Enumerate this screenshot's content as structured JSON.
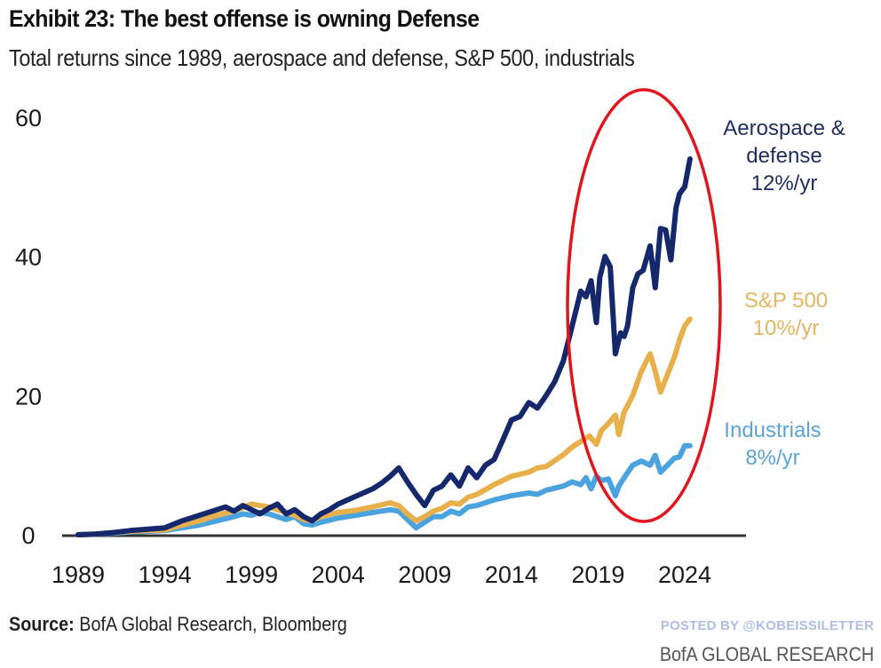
{
  "header": {
    "title": "Exhibit 23: The best offense is owning Defense",
    "subtitle": "Total returns since 1989, aerospace and defense, S&P 500, industrials"
  },
  "footer": {
    "source_label": "Source:",
    "source_text": "BofA Global Research, Bloomberg",
    "posted_by": "POSTED BY @KOBEISSILETTER",
    "brand": "BofA GLOBAL RESEARCH"
  },
  "chart_data": {
    "type": "line",
    "title": "Exhibit 23: The best offense is owning Defense",
    "subtitle": "Total returns since 1989, aerospace and defense, S&P 500, industrials",
    "xlabel": "",
    "ylabel": "",
    "xlim": [
      1989,
      2024.5
    ],
    "ylim": [
      0,
      60
    ],
    "x_ticks": [
      1989,
      1994,
      1999,
      2004,
      2009,
      2014,
      2019,
      2024
    ],
    "x_tick_labels": [
      "1989",
      "1994",
      "1999",
      "2004",
      "2009",
      "2014",
      "2019",
      "2024"
    ],
    "y_ticks": [
      0,
      20,
      40,
      60
    ],
    "y_tick_labels": [
      "0",
      "20",
      "40",
      "60"
    ],
    "grid": false,
    "legend": "direct labels at right",
    "annotation": "red ellipse highlighting 2018-2024",
    "series": [
      {
        "name": "Aerospace & defense",
        "label_lines": [
          "Aerospace &",
          "defense",
          "12%/yr"
        ],
        "cagr": "12%/yr",
        "color": "#14286b",
        "x": [
          1989,
          1990,
          1991,
          1992,
          1993,
          1994,
          1995,
          1996,
          1997,
          1997.5,
          1998,
          1998.5,
          1999,
          1999.5,
          2000,
          2000.5,
          2001,
          2001.5,
          2002,
          2002.5,
          2003,
          2003.5,
          2004,
          2005,
          2006,
          2006.5,
          2007,
          2007.5,
          2008,
          2008.5,
          2009,
          2009.5,
          2010,
          2010.5,
          2011,
          2011.5,
          2012,
          2012.5,
          2013,
          2013.5,
          2014,
          2014.5,
          2015,
          2015.5,
          2016,
          2016.5,
          2017,
          2017.5,
          2018,
          2018.3,
          2018.6,
          2018.9,
          2019.1,
          2019.4,
          2019.7,
          2020,
          2020.3,
          2020.5,
          2020.7,
          2021,
          2021.3,
          2021.6,
          2022,
          2022.3,
          2022.6,
          2022.9,
          2023.2,
          2023.5,
          2023.7,
          2024,
          2024.3
        ],
        "values": [
          0,
          0.1,
          0.3,
          0.6,
          0.8,
          1.0,
          2.0,
          2.8,
          3.6,
          4.0,
          3.4,
          4.2,
          3.6,
          3.0,
          3.8,
          4.4,
          3.0,
          3.6,
          2.6,
          2.0,
          3.0,
          3.6,
          4.4,
          5.5,
          6.6,
          7.4,
          8.4,
          9.6,
          7.6,
          5.8,
          4.2,
          6.4,
          7.0,
          8.6,
          7.0,
          9.6,
          8.2,
          10.0,
          10.8,
          13.6,
          16.5,
          17.0,
          19.0,
          18.2,
          20.0,
          22.0,
          25.0,
          30.0,
          35.0,
          34.2,
          36.5,
          30.5,
          37.0,
          40.0,
          38.5,
          26.0,
          29.0,
          28.5,
          30.0,
          35.5,
          37.5,
          38.0,
          41.5,
          35.5,
          44.0,
          43.8,
          39.5,
          47.0,
          49.0,
          50.0,
          54.0
        ]
      },
      {
        "name": "S&P 500",
        "label_lines": [
          "S&P 500",
          "10%/yr"
        ],
        "cagr": "10%/yr",
        "color": "#e8b04a",
        "x": [
          1989,
          1990,
          1991,
          1992,
          1993,
          1994,
          1995,
          1996,
          1997,
          1998,
          1998.5,
          1999,
          1999.5,
          2000,
          2000.5,
          2001,
          2001.5,
          2002,
          2002.5,
          2003,
          2004,
          2005,
          2006,
          2007,
          2007.5,
          2008,
          2008.5,
          2009,
          2009.5,
          2010,
          2010.5,
          2011,
          2011.5,
          2012,
          2013,
          2014,
          2015,
          2015.5,
          2016,
          2017,
          2017.5,
          2018,
          2018.5,
          2018.9,
          2019.2,
          2019.6,
          2020,
          2020.2,
          2020.5,
          2021,
          2021.5,
          2022,
          2022.3,
          2022.6,
          2023,
          2023.4,
          2023.7,
          2024,
          2024.3
        ],
        "values": [
          0,
          0.1,
          0.3,
          0.5,
          0.6,
          0.7,
          1.4,
          2.0,
          2.8,
          3.4,
          3.9,
          4.4,
          4.2,
          4.0,
          3.6,
          3.2,
          2.8,
          2.2,
          2.0,
          2.6,
          3.2,
          3.5,
          4.0,
          4.6,
          4.2,
          3.0,
          2.0,
          2.6,
          3.4,
          3.8,
          4.6,
          4.4,
          5.4,
          5.8,
          7.2,
          8.4,
          9.0,
          9.6,
          9.8,
          11.5,
          12.6,
          13.4,
          14.2,
          13.0,
          15.0,
          16.0,
          17.2,
          14.4,
          17.6,
          20.0,
          23.5,
          26.0,
          23.5,
          20.5,
          23.0,
          25.5,
          28.0,
          30.0,
          31.0
        ]
      },
      {
        "name": "Industrials",
        "label_lines": [
          "Industrials",
          "8%/yr"
        ],
        "cagr": "8%/yr",
        "color": "#4aa3df",
        "x": [
          1989,
          1990,
          1991,
          1992,
          1993,
          1994,
          1995,
          1996,
          1997,
          1998,
          1998.5,
          1999,
          1999.5,
          2000,
          2000.5,
          2001,
          2001.5,
          2002,
          2002.5,
          2003,
          2004,
          2005,
          2006,
          2007,
          2007.5,
          2008,
          2008.5,
          2009,
          2009.5,
          2010,
          2010.5,
          2011,
          2011.5,
          2012,
          2013,
          2014,
          2015,
          2015.5,
          2016,
          2017,
          2017.5,
          2018,
          2018.3,
          2018.6,
          2018.9,
          2019.2,
          2019.6,
          2020,
          2020.2,
          2020.5,
          2021,
          2021.5,
          2022,
          2022.3,
          2022.6,
          2023,
          2023.4,
          2023.7,
          2024,
          2024.3
        ],
        "values": [
          0,
          0.1,
          0.2,
          0.4,
          0.5,
          0.6,
          1.0,
          1.4,
          2.0,
          2.6,
          3.0,
          2.8,
          3.2,
          3.0,
          2.6,
          2.2,
          2.6,
          1.6,
          1.4,
          1.8,
          2.4,
          2.8,
          3.2,
          3.6,
          3.4,
          2.2,
          1.0,
          1.8,
          2.6,
          2.6,
          3.4,
          3.0,
          4.0,
          4.2,
          5.0,
          5.6,
          6.0,
          5.8,
          6.4,
          7.0,
          7.6,
          7.2,
          8.2,
          6.6,
          8.4,
          7.8,
          8.0,
          5.6,
          7.0,
          8.2,
          10.0,
          10.6,
          10.0,
          11.4,
          9.0,
          10.0,
          11.0,
          11.2,
          12.8,
          12.8
        ]
      }
    ]
  }
}
